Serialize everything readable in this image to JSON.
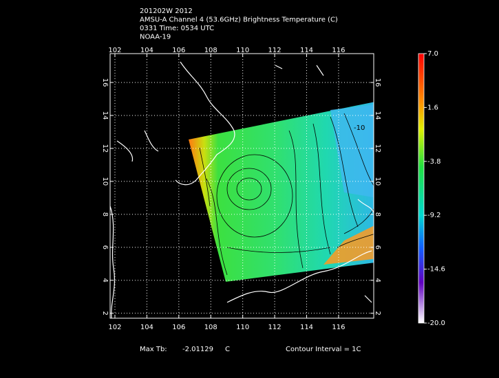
{
  "chart_data": {
    "type": "map",
    "title_lines": [
      "201202W 2012",
      "AMSU-A Channel 4 (53.6GHz) Brightness Temperature (C)",
      "0331 Time: 0534 UTC",
      "NOAA-19"
    ],
    "xlim": [
      101.7,
      118.2
    ],
    "ylim": [
      1.7,
      17.75
    ],
    "xticks": [
      102,
      104,
      106,
      108,
      110,
      112,
      114,
      116
    ],
    "yticks": [
      2,
      4,
      6,
      8,
      10,
      12,
      14,
      16
    ],
    "grid": true,
    "colorbar": {
      "lim": [
        -20,
        7
      ],
      "ticks": [
        {
          "value": 7,
          "label": "7.0"
        },
        1.6,
        -3.8,
        -9.2,
        -14.6,
        {
          "value": -20,
          "label": "-20.0"
        }
      ]
    },
    "contour_label": "-10",
    "max_tb_label": "Max Tb:",
    "max_tb": -2.01129,
    "max_tb_unit": "C",
    "contour_interval": "Contour Interval = 1C"
  }
}
